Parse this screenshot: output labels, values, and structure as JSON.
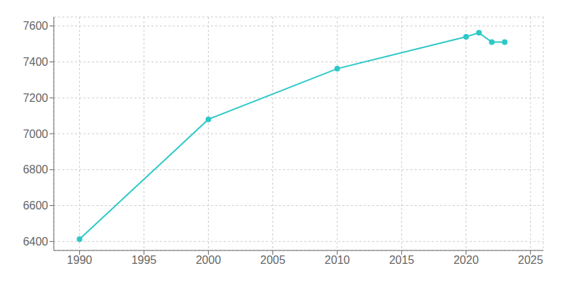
{
  "chart_data": {
    "type": "line",
    "x": [
      1990,
      2000,
      2010,
      2020,
      2021,
      2022,
      2023
    ],
    "values": [
      6413,
      7080,
      7362,
      7540,
      7562,
      7510,
      7510
    ],
    "color": "#2ec8c8",
    "marker": "circle",
    "xlim": [
      1988,
      2026
    ],
    "ylim": [
      6350,
      7650
    ],
    "xticks": [
      1990,
      1995,
      2000,
      2005,
      2010,
      2015,
      2020,
      2025
    ],
    "yticks": [
      6400,
      6600,
      6800,
      7000,
      7200,
      7400,
      7600
    ],
    "grid": true
  }
}
